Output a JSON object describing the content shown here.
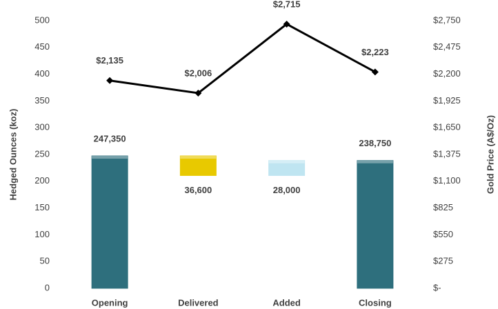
{
  "chart_data": {
    "type": "waterfall",
    "y_label": "Hedged Ounces (koz)",
    "y2_label": "Gold Price (A$/Oz)",
    "categories": [
      "Opening",
      "Delivered",
      "Added",
      "Closing"
    ],
    "ylim": [
      0,
      500
    ],
    "yticks": [
      0,
      50,
      100,
      150,
      200,
      250,
      300,
      350,
      400,
      450,
      500
    ],
    "y2lim": [
      0,
      2750
    ],
    "y2ticks": [
      {
        "value": 0,
        "label": "$-"
      },
      {
        "value": 275,
        "label": "$275"
      },
      {
        "value": 550,
        "label": "$550"
      },
      {
        "value": 825,
        "label": "$825"
      },
      {
        "value": 1100,
        "label": "$1,100"
      },
      {
        "value": 1375,
        "label": "$1,375"
      },
      {
        "value": 1650,
        "label": "$1,650"
      },
      {
        "value": 1925,
        "label": "$1,925"
      },
      {
        "value": 2200,
        "label": "$2,200"
      },
      {
        "value": 2475,
        "label": "$2,475"
      },
      {
        "value": 2750,
        "label": "$2,750"
      }
    ],
    "series": [
      {
        "type": "waterfall",
        "measures": [
          "total",
          "relative",
          "relative",
          "total"
        ],
        "values": [
          247.35,
          -36.6,
          28,
          238.75
        ],
        "value_labels": [
          "247,350",
          "36,600",
          "28,000",
          "238,750"
        ],
        "colors": [
          "#2e6f7d",
          "#e8c900",
          "#bfe5f1",
          "#2e6f7d"
        ]
      },
      {
        "type": "line",
        "axis": "y2",
        "color": "#000000",
        "values": [
          2135,
          2006,
          2715,
          2223
        ],
        "value_labels": [
          "$2,135",
          "$2,006",
          "$2,715",
          "$2,223"
        ]
      }
    ]
  }
}
